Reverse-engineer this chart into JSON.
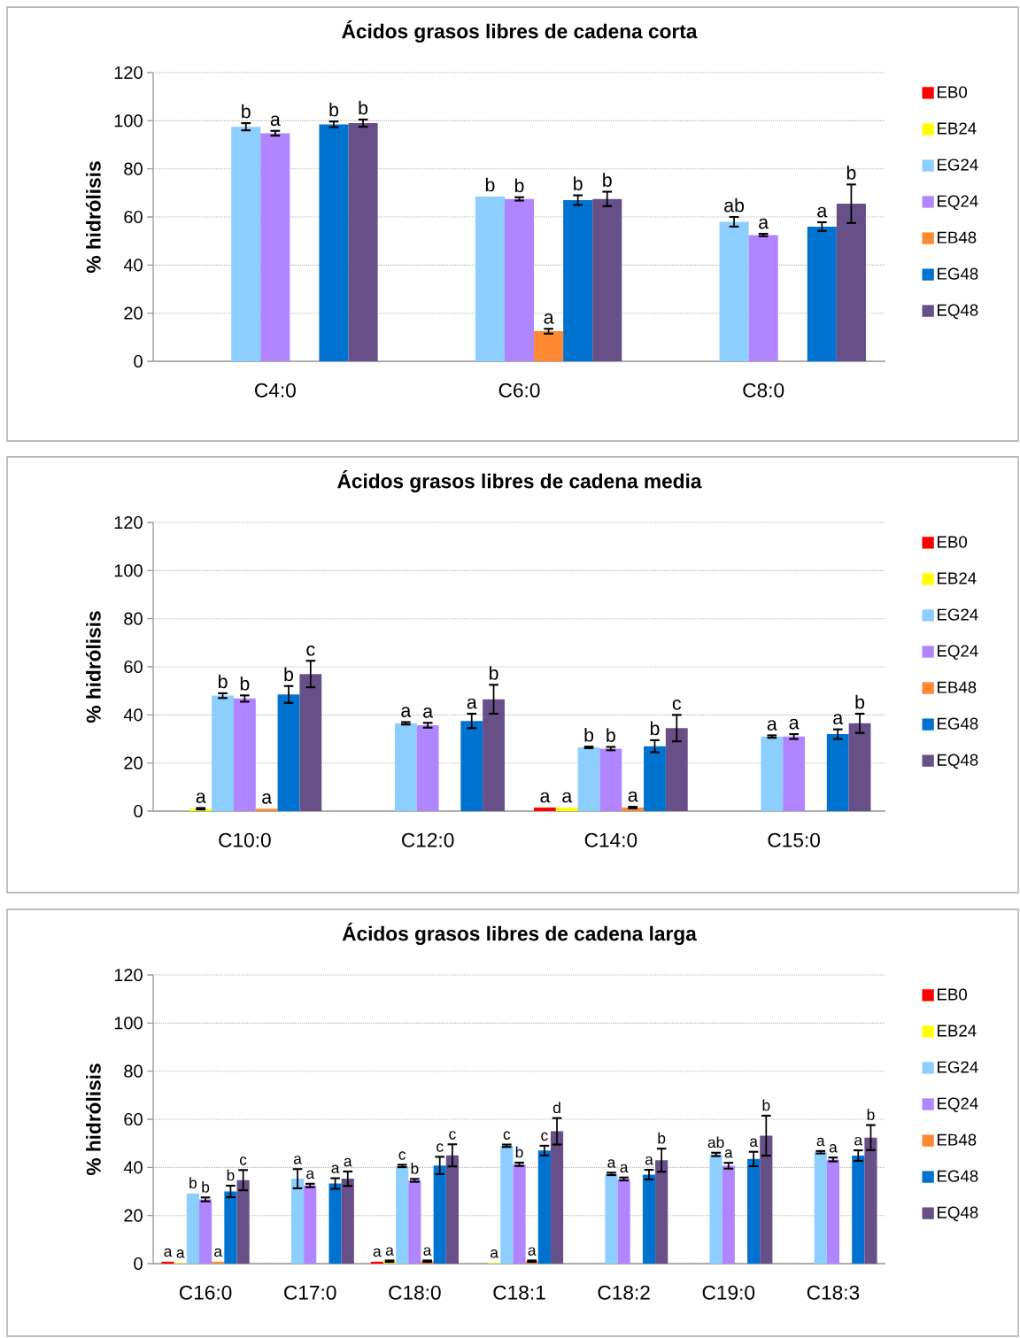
{
  "chart_data": [
    {
      "type": "bar",
      "title": "Ácidos grasos libres de cadena corta",
      "ylabel": "% hidrólisis",
      "categories": [
        "C4:0",
        "C6:0",
        "C8:0"
      ],
      "ylim": [
        0,
        120
      ],
      "yticks": [
        0,
        20,
        40,
        60,
        80,
        100,
        120
      ],
      "grid": "y",
      "legend": "right",
      "series": [
        {
          "name": "EB0",
          "color": "#ff0000",
          "values": [
            null,
            null,
            null
          ]
        },
        {
          "name": "EB24",
          "color": "#ffff00",
          "values": [
            null,
            null,
            null
          ]
        },
        {
          "name": "EG24",
          "color": "#8ccfff",
          "values": [
            97.5,
            68.5,
            58
          ],
          "errors": [
            1.5,
            null,
            2
          ],
          "value_labels": [
            "b",
            "b",
            "ab"
          ]
        },
        {
          "name": "EQ24",
          "color": "#b085ff",
          "values": [
            94.8,
            67.5,
            52.5
          ],
          "errors": [
            1,
            0.7,
            0.5
          ],
          "value_labels": [
            "a",
            "b",
            "a"
          ]
        },
        {
          "name": "EB48",
          "color": "#ff8833",
          "values": [
            null,
            12.5,
            null
          ],
          "errors": [
            null,
            1,
            null
          ],
          "value_labels": [
            null,
            "a",
            null
          ]
        },
        {
          "name": "EG48",
          "color": "#0072d0",
          "values": [
            98.5,
            67,
            56
          ],
          "errors": [
            1.2,
            2,
            1.8
          ],
          "value_labels": [
            "b",
            "b",
            "a"
          ]
        },
        {
          "name": "EQ48",
          "color": "#674f87",
          "values": [
            99,
            67.5,
            65.5
          ],
          "errors": [
            1.5,
            3,
            8
          ],
          "value_labels": [
            "b",
            "b",
            "b"
          ]
        }
      ]
    },
    {
      "type": "bar",
      "title": "Ácidos grasos libres de cadena media",
      "ylabel": "% hidrólisis",
      "categories": [
        "C10:0",
        "C12:0",
        "C14:0",
        "C15:0"
      ],
      "ylim": [
        0,
        120
      ],
      "yticks": [
        0,
        20,
        40,
        60,
        80,
        100,
        120
      ],
      "grid": "y",
      "legend": "right",
      "series": [
        {
          "name": "EB0",
          "color": "#ff0000",
          "values": [
            null,
            null,
            1.5,
            null
          ],
          "value_labels": [
            null,
            null,
            "a",
            null
          ]
        },
        {
          "name": "EB24",
          "color": "#ffff00",
          "values": [
            1,
            null,
            1.5,
            null
          ],
          "errors": [
            0.3,
            null,
            null,
            null
          ],
          "value_labels": [
            "a",
            null,
            "a",
            null
          ]
        },
        {
          "name": "EG24",
          "color": "#8ccfff",
          "values": [
            48,
            36.5,
            26.5,
            31
          ],
          "errors": [
            1,
            0.5,
            0.3,
            0.5
          ],
          "value_labels": [
            "b",
            "a",
            "b",
            "a"
          ]
        },
        {
          "name": "EQ24",
          "color": "#b085ff",
          "values": [
            46.8,
            35.7,
            26,
            31
          ],
          "errors": [
            1.3,
            1,
            0.7,
            1
          ],
          "value_labels": [
            "b",
            "a",
            "b",
            "a"
          ]
        },
        {
          "name": "EB48",
          "color": "#ff8833",
          "values": [
            1,
            null,
            1.5,
            null
          ],
          "errors": [
            null,
            null,
            0.3,
            null
          ],
          "value_labels": [
            "a",
            null,
            "a",
            null
          ]
        },
        {
          "name": "EG48",
          "color": "#0072d0",
          "values": [
            48.5,
            37.5,
            27,
            32
          ],
          "errors": [
            3.5,
            3,
            2.5,
            2
          ],
          "value_labels": [
            "b",
            "a",
            "b",
            "a"
          ]
        },
        {
          "name": "EQ48",
          "color": "#674f87",
          "values": [
            57,
            46.5,
            34.5,
            36.5
          ],
          "errors": [
            5.5,
            6,
            5.5,
            4
          ],
          "value_labels": [
            "c",
            "b",
            "c",
            "b"
          ]
        }
      ]
    },
    {
      "type": "bar",
      "title": "Ácidos grasos libres de cadena larga",
      "ylabel": "% hidrólisis",
      "categories": [
        "C16:0",
        "C17:0",
        "C18:0",
        "C18:1",
        "C18:2",
        "C19:0",
        "C18:3"
      ],
      "ylim": [
        0,
        120
      ],
      "yticks": [
        0,
        20,
        40,
        60,
        80,
        100,
        120
      ],
      "grid": "y",
      "legend": "right",
      "series": [
        {
          "name": "EB0",
          "color": "#ff0000",
          "values": [
            0.8,
            null,
            0.8,
            null,
            null,
            null,
            null
          ],
          "value_labels": [
            "a",
            null,
            "a",
            null,
            null,
            null,
            null
          ]
        },
        {
          "name": "EB24",
          "color": "#ffff00",
          "values": [
            0.3,
            null,
            1,
            0.3,
            null,
            null,
            null
          ],
          "errors": [
            null,
            null,
            0.3,
            null,
            null,
            null,
            null
          ],
          "value_labels": [
            "a",
            null,
            "a",
            "a",
            null,
            null,
            null
          ]
        },
        {
          "name": "EG24",
          "color": "#8ccfff",
          "values": [
            29.2,
            35.3,
            40.6,
            49,
            37.3,
            45.4,
            46.3
          ],
          "errors": [
            null,
            4,
            0.5,
            0.5,
            0.5,
            0.7,
            0.5
          ],
          "value_labels": [
            "b",
            "a",
            "c",
            "c",
            "a",
            "ab",
            "a"
          ]
        },
        {
          "name": "EQ24",
          "color": "#b085ff",
          "values": [
            26.7,
            32.5,
            34.6,
            41.3,
            35.2,
            40.7,
            43.3
          ],
          "errors": [
            0.8,
            0.7,
            0.6,
            0.7,
            0.6,
            1.2,
            0.8
          ],
          "value_labels": [
            "b",
            "a",
            "b",
            "b",
            "a",
            "a",
            "a"
          ]
        },
        {
          "name": "EB48",
          "color": "#ff8833",
          "values": [
            0.8,
            null,
            1,
            1,
            null,
            null,
            null
          ],
          "errors": [
            null,
            null,
            0.3,
            0.3,
            null,
            null,
            null
          ],
          "value_labels": [
            "a",
            null,
            "a",
            "a",
            null,
            null,
            null
          ]
        },
        {
          "name": "EG48",
          "color": "#0072d0",
          "values": [
            30,
            33.3,
            40.8,
            47,
            37,
            43.5,
            44.9
          ],
          "errors": [
            2.4,
            2.2,
            3.6,
            2,
            2,
            3,
            2.2
          ],
          "value_labels": [
            "b",
            "a",
            "c",
            "c",
            "a",
            "a",
            "a"
          ]
        },
        {
          "name": "EQ48",
          "color": "#674f87",
          "values": [
            34.7,
            35.3,
            45,
            55,
            43,
            53.2,
            52.4
          ],
          "errors": [
            4.2,
            3,
            4.6,
            5.5,
            4.8,
            8.3,
            5.2
          ],
          "value_labels": [
            "c",
            "a",
            "c",
            "d",
            "b",
            "b",
            "b"
          ]
        }
      ]
    }
  ]
}
